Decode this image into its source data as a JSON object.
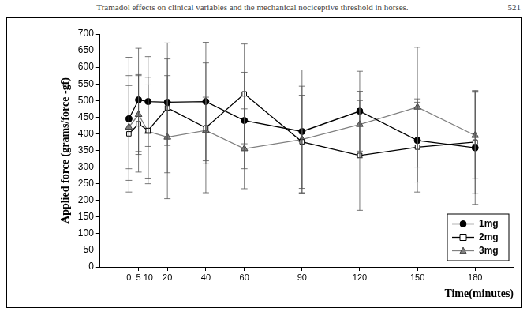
{
  "page_header": {
    "title": "Tramadol effects on clinical variables and the mechanical nociceptive threshold in horses.",
    "page": 521
  },
  "chart_data": {
    "type": "line",
    "x_label": "Time(minutes)",
    "y_label": "Applied force (grams/force -gf)",
    "x": [
      0,
      5,
      10,
      20,
      40,
      60,
      90,
      120,
      150,
      180
    ],
    "series": [
      {
        "name": "1mg",
        "color": "#000000",
        "marker": "circle",
        "values": [
          445,
          502,
          497,
          495,
          497,
          440,
          407,
          468,
          380,
          358
        ],
        "errors": [
          185,
          155,
          135,
          130,
          178,
          145,
          185,
          120,
          125,
          170
        ]
      },
      {
        "name": "2mg",
        "color": "#000000",
        "marker": "open_square",
        "values": [
          400,
          430,
          410,
          478,
          418,
          520,
          376,
          335,
          360,
          375
        ],
        "errors": [
          175,
          145,
          160,
          195,
          195,
          150,
          140,
          165,
          135,
          155
        ]
      },
      {
        "name": "3mg",
        "color": "#808080",
        "marker": "triangle",
        "values": [
          420,
          458,
          407,
          390,
          410,
          355,
          383,
          428,
          480,
          395
        ],
        "errors": [
          125,
          120,
          140,
          185,
          100,
          120,
          160,
          100,
          180,
          130
        ]
      }
    ],
    "xlim": [
      -15,
      200
    ],
    "xticks": [
      0,
      5,
      10,
      20,
      40,
      60,
      90,
      120,
      150,
      180
    ],
    "ylim": [
      0,
      700
    ],
    "yticks": [
      0,
      50,
      100,
      150,
      200,
      250,
      300,
      350,
      400,
      450,
      500,
      550,
      600,
      650,
      700
    ],
    "grid": false,
    "legend": "lower right"
  }
}
